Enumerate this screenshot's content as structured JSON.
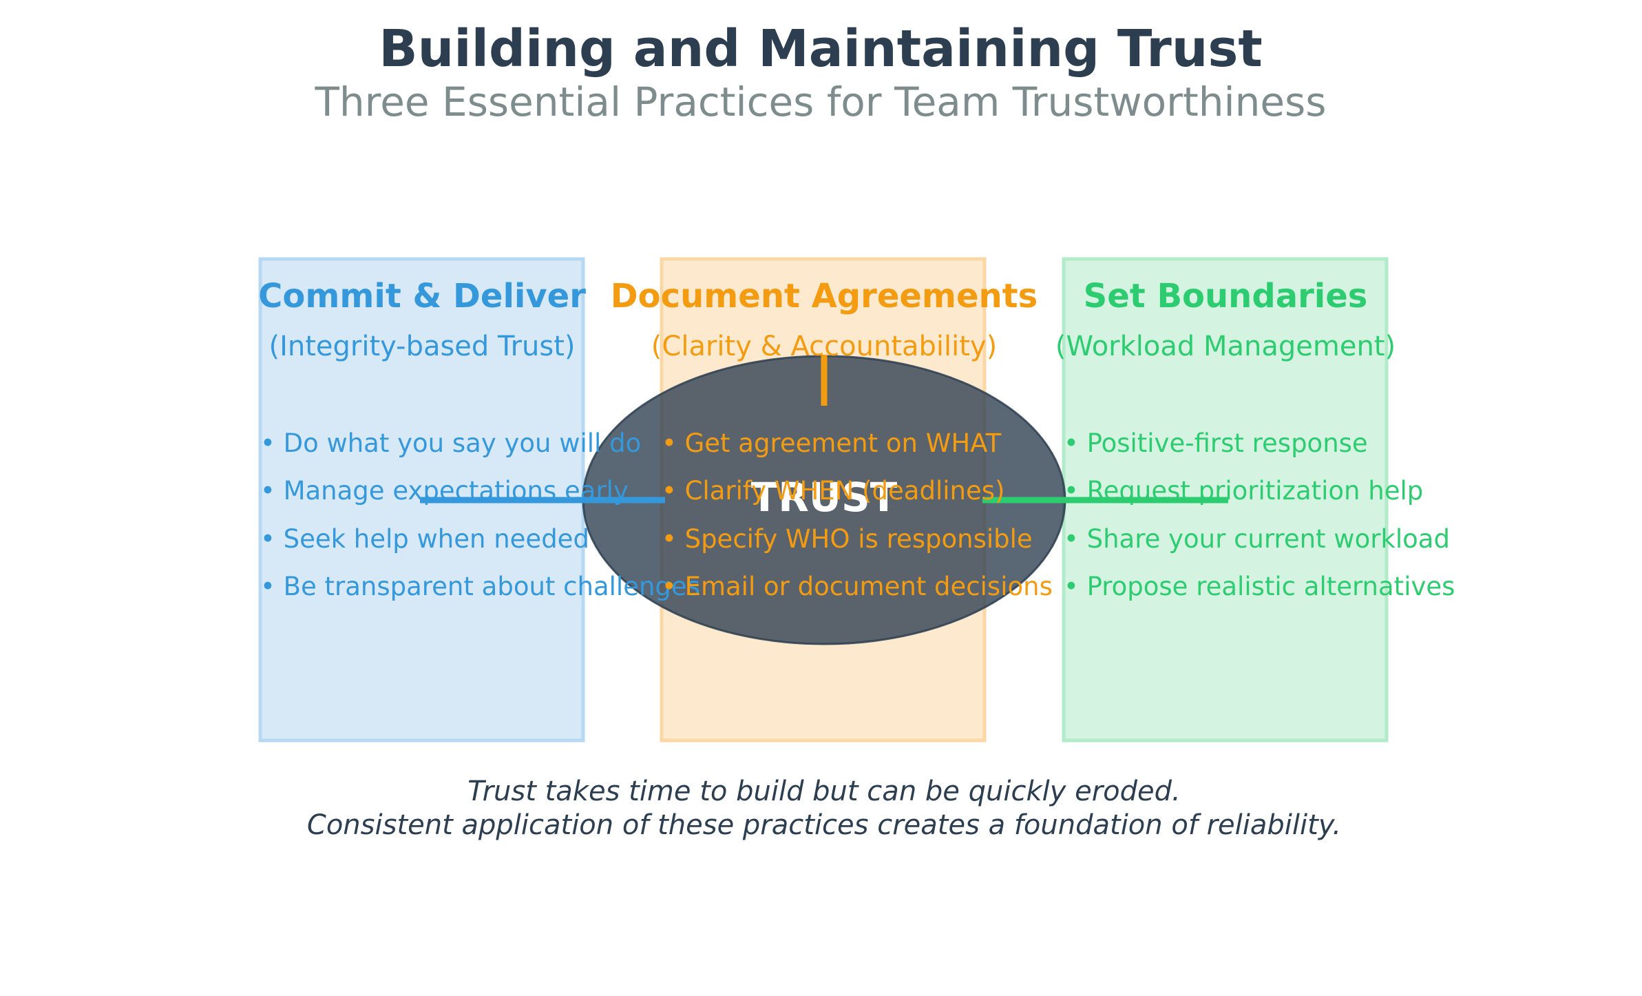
{
  "header": {
    "title": "Building and Maintaining Trust",
    "subtitle": "Three Essential Practices for Team Trustworthiness"
  },
  "colors": {
    "title": "#2c3e50",
    "subtitle": "#7f8c8d",
    "blue": "#3498db",
    "orange": "#f39c12",
    "green": "#2ecc71",
    "center": "#2c3e50"
  },
  "center": {
    "label": "TRUST"
  },
  "boxes": [
    {
      "title": "Commit & Deliver",
      "subtitle": "(Integrity-based Trust)",
      "items": [
        "• Do what you say you will do",
        "• Manage expectations early",
        "• Seek help when needed",
        "• Be transparent about challenges"
      ]
    },
    {
      "title": "Document Agreements",
      "subtitle": "(Clarity & Accountability)",
      "items": [
        "• Get agreement on WHAT",
        "• Clarify WHEN (deadlines)",
        "• Specify WHO is responsible",
        "• Email or document decisions"
      ]
    },
    {
      "title": "Set Boundaries",
      "subtitle": "(Workload Management)",
      "items": [
        "• Positive-first response",
        "• Request prioritization help",
        "• Share your current workload",
        "• Propose realistic alternatives"
      ]
    }
  ],
  "footer": {
    "line1": "Trust takes time to build but can be quickly eroded.",
    "line2": "Consistent application of these practices creates a foundation of reliability."
  }
}
